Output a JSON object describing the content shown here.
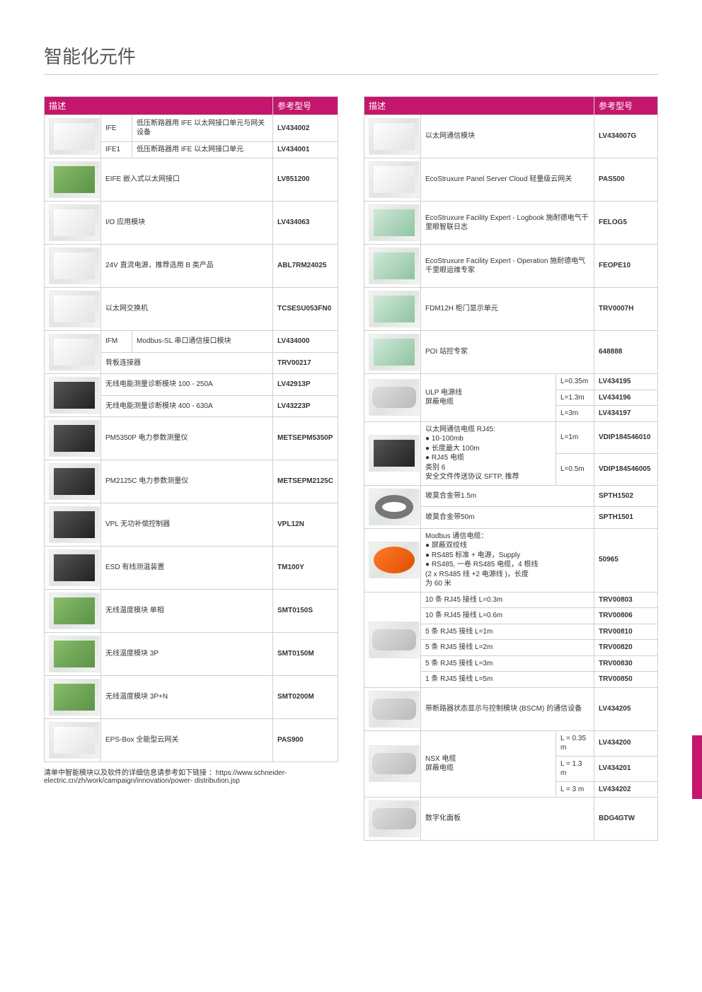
{
  "page_title": "智能化元件",
  "headers": {
    "desc": "描述",
    "ref": "参考型号"
  },
  "colors": {
    "accent": "#c4166c",
    "border": "#d0d0d0",
    "text": "#333333",
    "title": "#555555"
  },
  "left_rows": [
    {
      "img_style": "white",
      "img_rowspan": 2,
      "label": "IFE",
      "desc": "低压断路器用 IFE 以太网接口单元与网关设备",
      "code": "LV434002"
    },
    {
      "label": "IFE1",
      "desc": "低压断路器用 IFE 以太网接口单元",
      "code": "LV434001"
    },
    {
      "img_style": "green",
      "img_rowspan": 1,
      "colspan_desc": 2,
      "desc": "EIFE 嵌入式以太网接口",
      "code": "LV851200"
    },
    {
      "img_style": "white",
      "img_rowspan": 1,
      "colspan_desc": 2,
      "desc": "I/O 应用模块",
      "code": "LV434063"
    },
    {
      "img_style": "white",
      "img_rowspan": 1,
      "colspan_desc": 2,
      "desc": "24V 直流电源，推荐选用 B 类产品",
      "code": "ABL7RM24025"
    },
    {
      "img_style": "white",
      "img_rowspan": 1,
      "colspan_desc": 2,
      "desc": "以太网交换机",
      "code": "TCSESU053FN0"
    },
    {
      "img_style": "white",
      "img_rowspan": 2,
      "label": "IFM",
      "desc": "Modbus-SL 串口通信接口模块",
      "code": "LV434000"
    },
    {
      "colspan_full_desc": true,
      "desc": "背板连接器",
      "code": "TRV00217"
    },
    {
      "img_style": "dark",
      "img_rowspan": 2,
      "colspan_desc": 2,
      "desc": "无线电能测量诊断模块 100 - 250A",
      "code": "LV42913P"
    },
    {
      "colspan_desc": 2,
      "desc": "无线电能测量诊断模块 400 - 630A",
      "code": "LV43223P"
    },
    {
      "img_style": "dark",
      "img_rowspan": 1,
      "colspan_desc": 2,
      "desc": "PM5350P 电力参数测量仪",
      "code": "METSEPM5350P"
    },
    {
      "img_style": "dark",
      "img_rowspan": 1,
      "colspan_desc": 2,
      "desc": "PM2125C 电力参数测量仪",
      "code": "METSEPM2125C"
    },
    {
      "img_style": "dark",
      "img_rowspan": 1,
      "colspan_desc": 2,
      "desc": "VPL 无功补偿控制器",
      "code": "VPL12N"
    },
    {
      "img_style": "dark",
      "img_rowspan": 1,
      "colspan_desc": 2,
      "desc": "ESD 有线测温装置",
      "code": "TM100Y"
    },
    {
      "img_style": "green",
      "img_rowspan": 1,
      "colspan_desc": 2,
      "desc": "无线温度模块 单相",
      "code": "SMT0150S"
    },
    {
      "img_style": "green",
      "img_rowspan": 1,
      "colspan_desc": 2,
      "desc": "无线温度模块 3P",
      "code": "SMT0150M"
    },
    {
      "img_style": "green",
      "img_rowspan": 1,
      "colspan_desc": 2,
      "desc": "无线温度模块 3P+N",
      "code": "SMT0200M"
    },
    {
      "img_style": "white",
      "img_rowspan": 1,
      "colspan_desc": 2,
      "desc": "EPS-Box 全能型云网关",
      "code": "PAS900"
    }
  ],
  "right_rows": [
    {
      "img_style": "white",
      "img_rowspan": 1,
      "desc_colspan": 2,
      "desc": "以太网通信模块",
      "code": "LV434007G"
    },
    {
      "img_style": "white",
      "img_rowspan": 1,
      "desc_colspan": 2,
      "desc": "EcoStruxure Panel Server Cloud 轻量级云网关",
      "code": "PAS500"
    },
    {
      "img_style": "screen",
      "img_rowspan": 1,
      "desc_colspan": 2,
      "desc": "EcoStruxure Facility Expert - Logbook 施耐德电气千里眼智联日志",
      "code": "FELOG5"
    },
    {
      "img_style": "screen",
      "img_rowspan": 1,
      "desc_colspan": 2,
      "desc": "EcoStruxure Facility Expert - Operation 施耐德电气千里眼运维专家",
      "code": "FEOPE10"
    },
    {
      "img_style": "screen",
      "img_rowspan": 1,
      "desc_colspan": 2,
      "desc": "FDM12H 柜门显示单元",
      "code": "TRV0007H"
    },
    {
      "img_style": "screen",
      "img_rowspan": 1,
      "desc_colspan": 2,
      "desc": "POI 站控专家",
      "code": "648888"
    },
    {
      "img_style": "cable",
      "img_rowspan": 3,
      "desc_rowspan": 3,
      "desc": "ULP 电源线\n屏蔽电缆",
      "variants": [
        {
          "len": "L=0.35m",
          "code": "LV434195"
        },
        {
          "len": "L=1.3m",
          "code": "LV434196"
        },
        {
          "len": "L=3m",
          "code": "LV434197"
        }
      ]
    },
    {
      "img_style": "dark",
      "img_rowspan": 2,
      "desc_rowspan": 2,
      "desc": "以太网通信电缆 RJ45:\n● 10-100mb\n● 长度最大 100m\n● RJ45 电缆\n类别 6\n安全文件传送协议 SFTP, 推荐",
      "variants": [
        {
          "len": "L=1m",
          "code": "VDIP184546010"
        },
        {
          "len": "L=0.5m",
          "code": "VDIP184546005"
        }
      ]
    },
    {
      "img_style": "ring",
      "img_rowspan": 2,
      "simple_rows": [
        {
          "desc": "坡莫合金带1.5m",
          "code": "SPTH1502"
        },
        {
          "desc": "坡莫合金带50m",
          "code": "SPTH1501"
        }
      ]
    },
    {
      "img_style": "orange",
      "img_rowspan": 1,
      "desc_colspan": 2,
      "desc": "Modbus 通信电缆：\n● 屏蔽双绞线\n● RS485 标准 + 电源，Supply\n● RS485,  一卷 RS485 电缆，4 根线\n   (2 x RS485 线 +2 电源线 )，长度\n   为 60 米",
      "code": "50965"
    },
    {
      "img_style": "cable",
      "img_rowspan": 6,
      "simple_rows": [
        {
          "desc": "10 条 RJ45 接线 L=0.3m",
          "code": "TRV00803"
        },
        {
          "desc": "10 条 RJ45 接线 L=0.6m",
          "code": "TRV00806"
        },
        {
          "desc": "5 条 RJ45 接线 L=1m",
          "code": "TRV00810"
        },
        {
          "desc": "5 条 RJ45 接线 L=2m",
          "code": "TRV00820"
        },
        {
          "desc": "5 条 RJ45 接线 L=3m",
          "code": "TRV00830"
        },
        {
          "desc": "1 条 RJ45 接线 L=5m",
          "code": "TRV00850"
        }
      ]
    },
    {
      "img_style": "cable",
      "img_rowspan": 1,
      "desc_colspan": 2,
      "desc": "带断路器状态显示与控制模块 (BSCM) 的通信设备",
      "code": "LV434205"
    },
    {
      "img_style": "cable",
      "img_rowspan": 3,
      "desc_rowspan": 3,
      "desc": "NSX 电缆\n屏蔽电缆",
      "variants": [
        {
          "len": "L = 0.35 m",
          "code": "LV434200"
        },
        {
          "len": "L = 1.3 m",
          "code": "LV434201"
        },
        {
          "len": "L = 3 m",
          "code": "LV434202"
        }
      ]
    },
    {
      "img_style": "cable",
      "img_rowspan": 1,
      "desc_colspan": 2,
      "desc": "数字化面板",
      "code": "BDG4GTW"
    }
  ],
  "footnote": "清单中智能模块以及软件的详细信息请参考如下链接 ：https://www.schneider-electric.cn/zh/work/campaign/innovation/power- distribution.jsp"
}
